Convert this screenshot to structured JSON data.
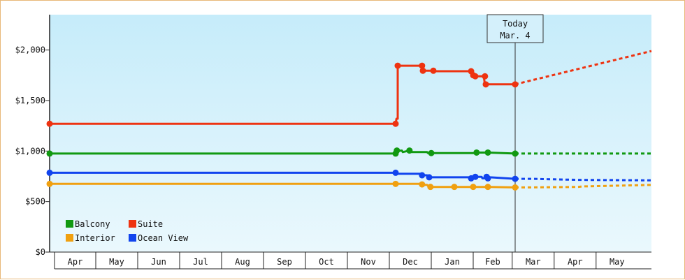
{
  "chart_data": {
    "type": "line",
    "title": "",
    "xlabel": "",
    "ylabel": "",
    "ylim": [
      0,
      2350
    ],
    "y_ticks": [
      {
        "value": 0,
        "label": "$0"
      },
      {
        "value": 500,
        "label": "$500"
      },
      {
        "value": 1000,
        "label": "$1,000"
      },
      {
        "value": 1500,
        "label": "$1,500"
      },
      {
        "value": 2000,
        "label": "$2,000"
      }
    ],
    "x_months": [
      {
        "label": "Apr",
        "start": 0.1,
        "end": 1.1
      },
      {
        "label": "May",
        "start": 1.1,
        "end": 2.1
      },
      {
        "label": "Jun",
        "start": 2.1,
        "end": 3.1
      },
      {
        "label": "Jul",
        "start": 3.1,
        "end": 4.1
      },
      {
        "label": "Aug",
        "start": 4.1,
        "end": 5.1
      },
      {
        "label": "Sep",
        "start": 5.1,
        "end": 6.1
      },
      {
        "label": "Oct",
        "start": 6.1,
        "end": 7.1
      },
      {
        "label": "Nov",
        "start": 7.1,
        "end": 8.1
      },
      {
        "label": "Dec",
        "start": 8.1,
        "end": 9.1
      },
      {
        "label": "Jan",
        "start": 9.1,
        "end": 10.1
      },
      {
        "label": "Feb",
        "start": 10.1,
        "end": 11.03
      },
      {
        "label": "Mar",
        "start": 11.03,
        "end": 12.03
      },
      {
        "label": "Apr",
        "start": 12.03,
        "end": 13.03
      },
      {
        "label": "May",
        "start": 13.03,
        "end": 14.03
      }
    ],
    "xlim": [
      0,
      14.35
    ],
    "today": {
      "x": 11.1,
      "label_line1": "Today",
      "label_line2": "Mar. 4"
    },
    "legend_position": "bottom-left",
    "grid": false,
    "series": [
      {
        "name": "Balcony",
        "color": "#119911",
        "points": [
          [
            0,
            975
          ],
          [
            8.25,
            975
          ],
          [
            8.28,
            1000
          ],
          [
            8.4,
            1005
          ],
          [
            8.42,
            990
          ],
          [
            8.58,
            1005
          ],
          [
            8.6,
            990
          ],
          [
            9.0,
            990
          ],
          [
            9.02,
            980
          ],
          [
            9.1,
            980
          ],
          [
            10.15,
            980
          ],
          [
            10.18,
            985
          ],
          [
            10.45,
            985
          ],
          [
            11.1,
            975
          ]
        ],
        "markers": [
          [
            0,
            975
          ],
          [
            8.25,
            975
          ],
          [
            8.28,
            1005
          ],
          [
            8.58,
            1005
          ],
          [
            9.1,
            980
          ],
          [
            10.18,
            985
          ],
          [
            10.45,
            985
          ],
          [
            11.1,
            975
          ]
        ],
        "forecast": [
          [
            11.1,
            975
          ],
          [
            14.35,
            975
          ]
        ]
      },
      {
        "name": "Suite",
        "color": "#ee3311",
        "points": [
          [
            0,
            1270
          ],
          [
            8.25,
            1270
          ],
          [
            8.27,
            1320
          ],
          [
            8.3,
            1320
          ],
          [
            8.3,
            1845
          ],
          [
            8.88,
            1845
          ],
          [
            8.88,
            1795
          ],
          [
            9.15,
            1795
          ],
          [
            9.2,
            1790
          ],
          [
            10.05,
            1790
          ],
          [
            10.08,
            1750
          ],
          [
            10.15,
            1740
          ],
          [
            10.35,
            1740
          ],
          [
            10.38,
            1660
          ],
          [
            11.1,
            1660
          ]
        ],
        "markers": [
          [
            0,
            1270
          ],
          [
            8.25,
            1270
          ],
          [
            8.3,
            1845
          ],
          [
            8.88,
            1845
          ],
          [
            8.9,
            1795
          ],
          [
            9.15,
            1795
          ],
          [
            10.05,
            1790
          ],
          [
            10.1,
            1750
          ],
          [
            10.15,
            1740
          ],
          [
            10.38,
            1740
          ],
          [
            10.4,
            1660
          ],
          [
            11.1,
            1660
          ]
        ],
        "forecast": [
          [
            11.1,
            1660
          ],
          [
            14.35,
            1990
          ]
        ]
      },
      {
        "name": "Interior",
        "color": "#f0a010",
        "points": [
          [
            0,
            675
          ],
          [
            8.25,
            675
          ],
          [
            8.85,
            675
          ],
          [
            8.88,
            665
          ],
          [
            9.0,
            665
          ],
          [
            9.05,
            645
          ],
          [
            9.65,
            645
          ],
          [
            10.5,
            645
          ],
          [
            11.1,
            640
          ]
        ],
        "markers": [
          [
            0,
            675
          ],
          [
            8.25,
            675
          ],
          [
            8.88,
            670
          ],
          [
            9.08,
            645
          ],
          [
            9.65,
            645
          ],
          [
            10.1,
            645
          ],
          [
            10.45,
            645
          ],
          [
            11.1,
            640
          ]
        ],
        "forecast": [
          [
            11.1,
            640
          ],
          [
            11.4,
            640
          ],
          [
            12.6,
            645
          ],
          [
            12.7,
            650
          ],
          [
            14.35,
            665
          ]
        ]
      },
      {
        "name": "Ocean View",
        "color": "#1144ee",
        "points": [
          [
            0,
            785
          ],
          [
            8.25,
            785
          ],
          [
            8.28,
            775
          ],
          [
            8.85,
            775
          ],
          [
            8.88,
            760
          ],
          [
            9.0,
            760
          ],
          [
            9.05,
            740
          ],
          [
            10.05,
            740
          ],
          [
            10.08,
            730
          ],
          [
            10.15,
            730
          ],
          [
            10.17,
            745
          ],
          [
            10.3,
            745
          ],
          [
            10.32,
            730
          ],
          [
            10.4,
            730
          ],
          [
            10.42,
            745
          ],
          [
            10.5,
            740
          ],
          [
            11.1,
            725
          ]
        ],
        "markers": [
          [
            0,
            785
          ],
          [
            8.25,
            785
          ],
          [
            8.88,
            760
          ],
          [
            9.05,
            740
          ],
          [
            10.05,
            730
          ],
          [
            10.15,
            745
          ],
          [
            10.42,
            745
          ],
          [
            10.45,
            730
          ],
          [
            11.1,
            725
          ]
        ],
        "forecast": [
          [
            11.1,
            725
          ],
          [
            11.5,
            725
          ],
          [
            12.6,
            715
          ],
          [
            14.35,
            710
          ]
        ]
      }
    ]
  }
}
